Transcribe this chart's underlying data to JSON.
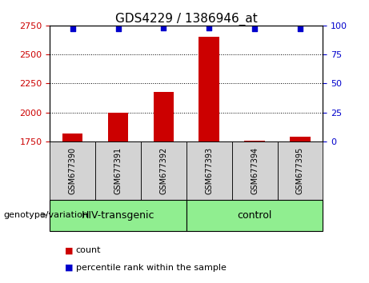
{
  "title": "GDS4229 / 1386946_at",
  "samples": [
    "GSM677390",
    "GSM677391",
    "GSM677392",
    "GSM677393",
    "GSM677394",
    "GSM677395"
  ],
  "bar_values": [
    1820,
    2000,
    2175,
    2650,
    1760,
    1790
  ],
  "bar_bottom": 1750,
  "percentile_values": [
    97,
    97,
    97.5,
    98,
    97,
    97
  ],
  "ylim_left": [
    1750,
    2750
  ],
  "yticks_left": [
    1750,
    2000,
    2250,
    2500,
    2750
  ],
  "ylim_right": [
    0,
    100
  ],
  "yticks_right": [
    0,
    25,
    50,
    75,
    100
  ],
  "bar_color": "#cc0000",
  "dot_color": "#0000cc",
  "group_label_prefix": "genotype/variation",
  "legend_count_label": "count",
  "legend_percentile_label": "percentile rank within the sample",
  "left_tick_color": "#cc0000",
  "right_tick_color": "#0000cc",
  "grid_color": "#000000",
  "background_color": "#ffffff",
  "sample_box_color": "#d3d3d3",
  "group_box_color": "#90ee90",
  "title_fontsize": 11,
  "tick_fontsize": 8,
  "sample_fontsize": 7,
  "group_fontsize": 9,
  "legend_fontsize": 8
}
